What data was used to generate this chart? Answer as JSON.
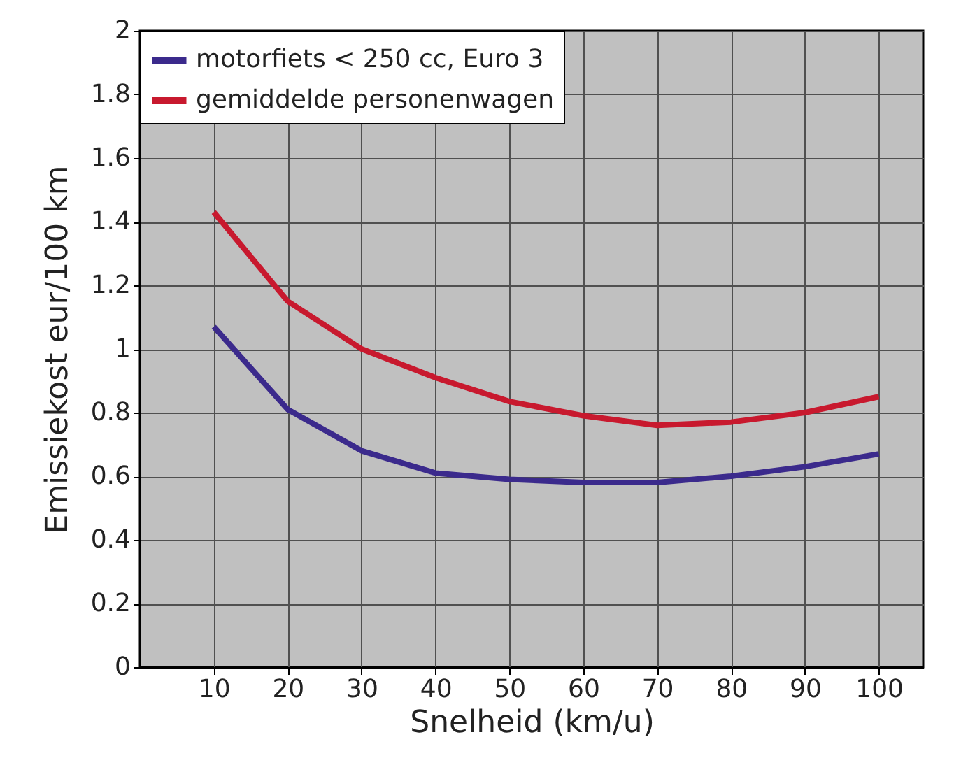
{
  "chart_data": {
    "type": "line",
    "xlabel": "Snelheid (km/u)",
    "ylabel": "Emissiekost eur/100 km",
    "x": [
      10,
      20,
      30,
      40,
      50,
      60,
      70,
      80,
      90,
      100
    ],
    "series": [
      {
        "name": "motorfiets < 250 cc, Euro 3",
        "color": "#3b2a8c",
        "values": [
          1.07,
          0.81,
          0.68,
          0.61,
          0.59,
          0.58,
          0.58,
          0.6,
          0.63,
          0.67
        ]
      },
      {
        "name": "gemiddelde personenwagen",
        "color": "#c8192e",
        "values": [
          1.43,
          1.15,
          1.0,
          0.91,
          0.835,
          0.79,
          0.76,
          0.77,
          0.8,
          0.85
        ]
      }
    ],
    "xlim": [
      0,
      106
    ],
    "xticks": [
      10,
      20,
      30,
      40,
      50,
      60,
      70,
      80,
      90,
      100
    ],
    "ylim": [
      0,
      2
    ],
    "yticks": [
      0,
      0.2,
      0.4,
      0.6,
      0.8,
      1,
      1.2,
      1.4,
      1.6,
      1.8,
      2
    ],
    "grid": true,
    "legend": "top left",
    "marker": "none",
    "line_style": "solid"
  }
}
